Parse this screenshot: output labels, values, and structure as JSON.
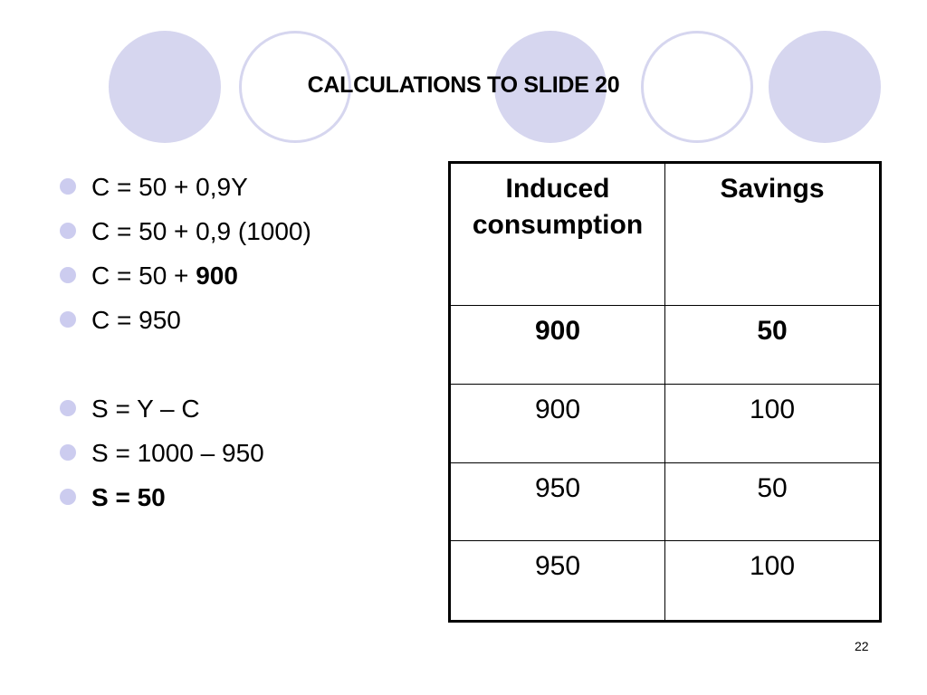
{
  "slide": {
    "title": "CALCULATIONS TO SLIDE 20",
    "page_number": "22"
  },
  "bullets": [
    {
      "text": "C = 50 + 0,9Y",
      "bold": ""
    },
    {
      "text": "C = 50 + 0,9 (1000)",
      "bold": ""
    },
    {
      "text": "C = 50 + ",
      "bold": "900"
    },
    {
      "text": "C = 950",
      "bold": ""
    },
    {
      "text": "",
      "bold": "S = Y – C"
    },
    {
      "text": "S = 1000 – 950",
      "bold": ""
    },
    {
      "text": "",
      "bold": "S = 50"
    }
  ],
  "table": {
    "headers": [
      "Induced consumption",
      "Savings"
    ],
    "rows": [
      [
        "900",
        "50"
      ],
      [
        "900",
        "100"
      ],
      [
        "950",
        "50"
      ],
      [
        "950",
        "100"
      ]
    ]
  },
  "colors": {
    "circle_fill": "#d6d6ef",
    "bullet": "#ccccef"
  }
}
